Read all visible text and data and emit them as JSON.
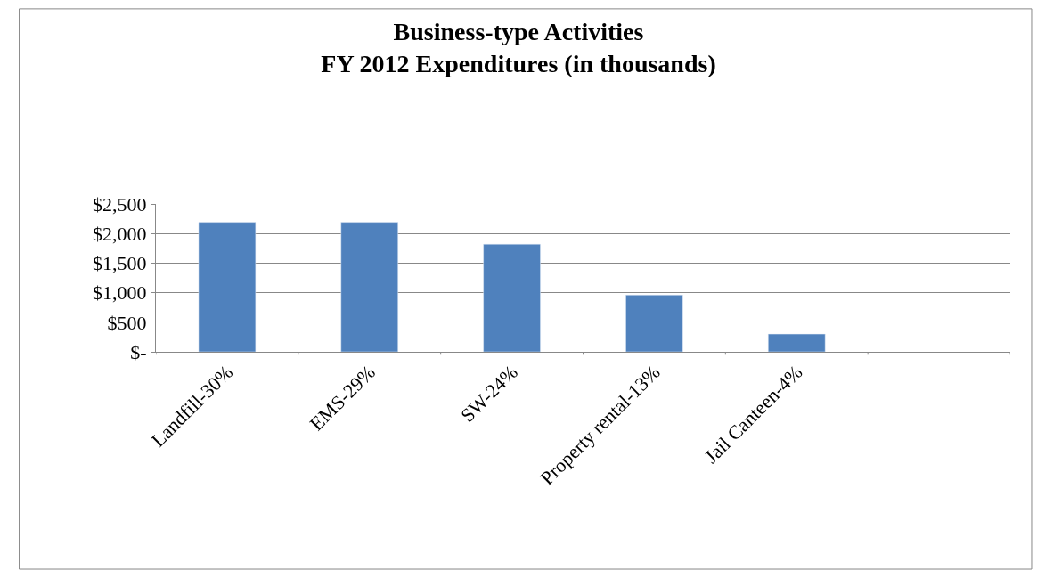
{
  "chart_data": {
    "type": "bar",
    "title": "Business-type Activities\nFY 2012 Expenditures (in thousands)",
    "categories": [
      "Landfill-30%",
      "EMS-29%",
      "SW-24%",
      "Property rental-13%",
      "Jail Canteen-4%",
      null
    ],
    "values": [
      2190,
      2190,
      1820,
      960,
      300,
      null
    ],
    "color": "#4f81bd",
    "ylim": [
      0,
      2500
    ],
    "yticks": [
      {
        "value": 0,
        "label": "$-"
      },
      {
        "value": 500,
        "label": "$500"
      },
      {
        "value": 1000,
        "label": "$1,000"
      },
      {
        "value": 1500,
        "label": "$1,500"
      },
      {
        "value": 2000,
        "label": "$2,000"
      },
      {
        "value": 2500,
        "label": "$2,500"
      }
    ],
    "grid": "y"
  }
}
